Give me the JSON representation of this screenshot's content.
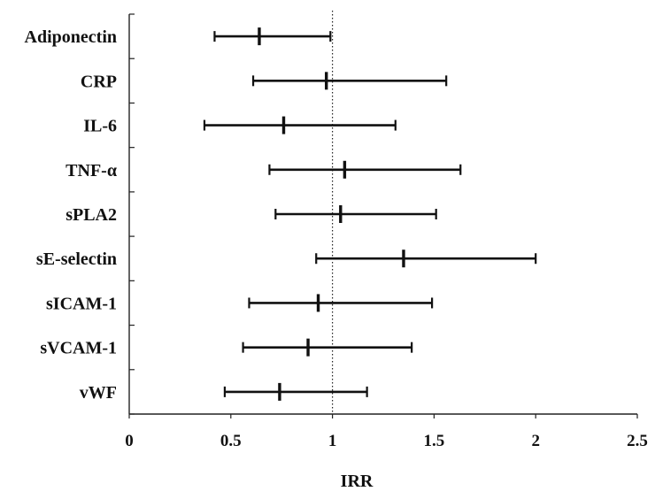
{
  "chart_data": {
    "type": "forest",
    "title": "",
    "xlabel": "IRR",
    "ylabel": "",
    "xlim": [
      0,
      2.5
    ],
    "xticks": [
      "0",
      "0.5",
      "1",
      "1.5",
      "2",
      "2.5"
    ],
    "reference_line": 1,
    "grid": false,
    "legend": "none",
    "items": [
      {
        "label": "Adiponectin",
        "estimate": 0.64,
        "lower": 0.42,
        "upper": 0.99
      },
      {
        "label": "CRP",
        "estimate": 0.97,
        "lower": 0.61,
        "upper": 1.56
      },
      {
        "label": "IL-6",
        "estimate": 0.76,
        "lower": 0.37,
        "upper": 1.31
      },
      {
        "label": "TNF-α",
        "estimate": 1.06,
        "lower": 0.69,
        "upper": 1.63
      },
      {
        "label": "sPLA2",
        "estimate": 1.04,
        "lower": 0.72,
        "upper": 1.51
      },
      {
        "label": "sE-selectin",
        "estimate": 1.35,
        "lower": 0.92,
        "upper": 2.0
      },
      {
        "label": "sICAM-1",
        "estimate": 0.93,
        "lower": 0.59,
        "upper": 1.49
      },
      {
        "label": "sVCAM-1",
        "estimate": 0.88,
        "lower": 0.56,
        "upper": 1.39
      },
      {
        "label": "vWF",
        "estimate": 0.74,
        "lower": 0.47,
        "upper": 1.17
      }
    ]
  }
}
